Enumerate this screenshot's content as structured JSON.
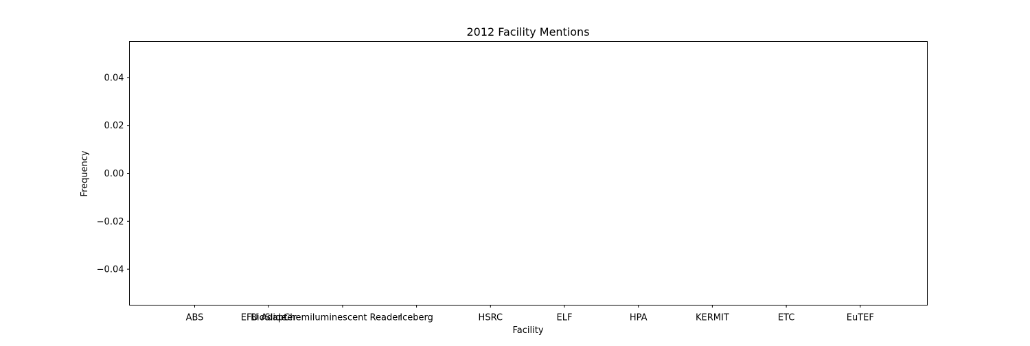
{
  "chart_data": {
    "type": "bar",
    "title": "2012 Facility Mentions",
    "xlabel": "Facility",
    "ylabel": "Frequency",
    "categories": [
      "ABS",
      "EFU Adapter",
      "BioSlide",
      "Chemiluminescent Reader",
      "Iceberg",
      "HSRC",
      "ELF",
      "HPA",
      "KERMIT",
      "ETC",
      "EuTEF"
    ],
    "values": [
      0,
      0,
      0,
      0,
      0,
      0,
      0,
      0,
      0,
      0,
      0
    ],
    "ylim": [
      -0.055,
      0.055
    ],
    "yticks": [
      -0.04,
      -0.02,
      0.0,
      0.02,
      0.04
    ],
    "ytick_labels": [
      "−0.04",
      "−0.02",
      "0.00",
      "0.02",
      "0.04"
    ],
    "grid": false,
    "legend": "none"
  }
}
